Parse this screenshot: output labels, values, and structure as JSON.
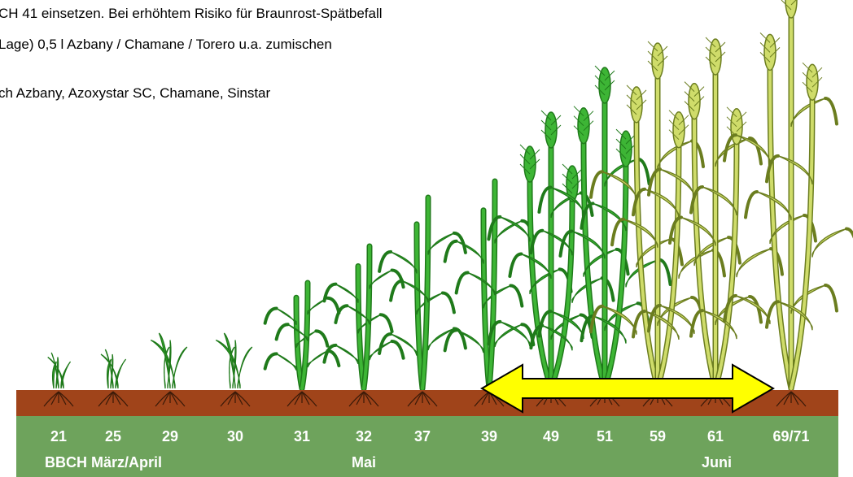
{
  "text_lines": [
    "CH 41 einsetzen. Bei erhöhtem Risiko für Braunrost-Spätbefall",
    "Lage) 0,5 l Azbany / Chamane / Torero u.a. zumischen",
    "ch Azbany, Azoxystar SC, Chamane, Sinstar"
  ],
  "stages": [
    "21",
    "25",
    "29",
    "30",
    "31",
    "32",
    "37",
    "39",
    "49",
    "51",
    "59",
    "61",
    "69/71"
  ],
  "months": [
    "BBCH März/April",
    "Mai",
    "Juni"
  ]
}
